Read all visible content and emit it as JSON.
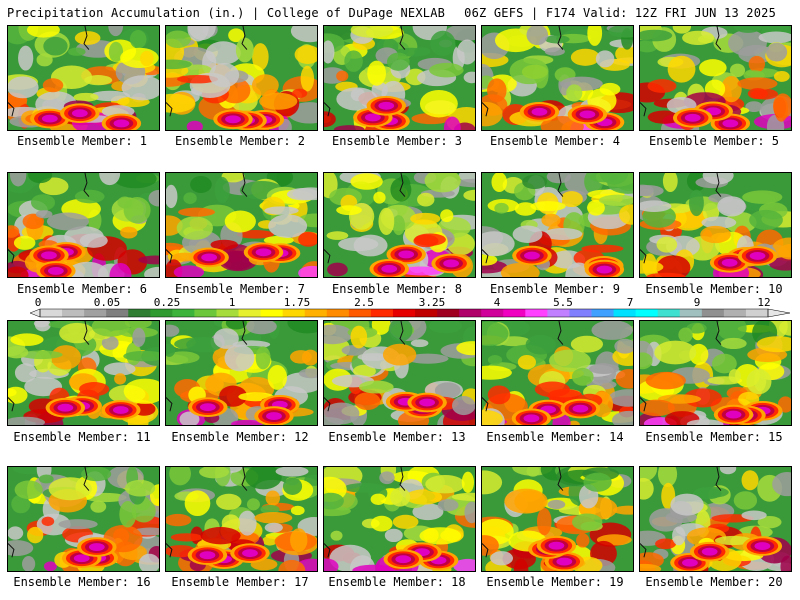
{
  "header": {
    "left_title": "Precipitation Accumulation (in.) | College of DuPage NEXLAB",
    "right_title": "06Z GEFS | F174 Valid: 12Z FRI JUN 13 2025"
  },
  "panels": [
    {
      "label": "Ensemble Member: 1"
    },
    {
      "label": "Ensemble Member: 2"
    },
    {
      "label": "Ensemble Member: 3"
    },
    {
      "label": "Ensemble Member: 4"
    },
    {
      "label": "Ensemble Member: 5"
    },
    {
      "label": "Ensemble Member: 6"
    },
    {
      "label": "Ensemble Member: 7"
    },
    {
      "label": "Ensemble Member: 8"
    },
    {
      "label": "Ensemble Member: 9"
    },
    {
      "label": "Ensemble Member: 10"
    },
    {
      "label": "Ensemble Member: 11"
    },
    {
      "label": "Ensemble Member: 12"
    },
    {
      "label": "Ensemble Member: 13"
    },
    {
      "label": "Ensemble Member: 14"
    },
    {
      "label": "Ensemble Member: 15"
    },
    {
      "label": "Ensemble Member: 16"
    },
    {
      "label": "Ensemble Member: 17"
    },
    {
      "label": "Ensemble Member: 18"
    },
    {
      "label": "Ensemble Member: 19"
    },
    {
      "label": "Ensemble Member: 20"
    }
  ],
  "colorbar": {
    "tick_labels": [
      "0",
      "0.05",
      "0.25",
      "1",
      "1.75",
      "2.5",
      "3.25",
      "4",
      "5.5",
      "7",
      "9",
      "12"
    ],
    "colors": [
      "#d9d9d9",
      "#bdbdbd",
      "#a0a0a0",
      "#7f7f7f",
      "#2e7d32",
      "#2f9a2f",
      "#3cb43c",
      "#6cc83a",
      "#a6dc3c",
      "#e6f02e",
      "#ffff00",
      "#ffd700",
      "#ffb000",
      "#ff8c00",
      "#ff5a00",
      "#ff2a00",
      "#e60000",
      "#c00000",
      "#a00020",
      "#b0006a",
      "#d0009a",
      "#f000c0",
      "#ff40ff",
      "#c080ff",
      "#8080ff",
      "#40a0ff",
      "#00e0ff",
      "#00ffff",
      "#40e0d0",
      "#a0c0c0",
      "#909090",
      "#b0b0b0",
      "#d0d0d0"
    ]
  }
}
